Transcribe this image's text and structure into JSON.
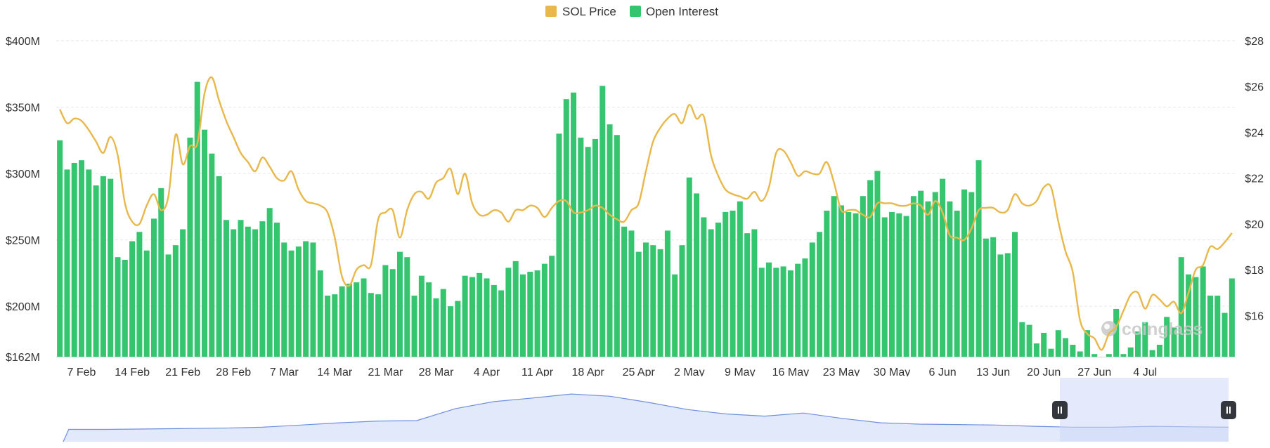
{
  "legend": [
    {
      "name": "SOL Price",
      "color": "#e8b84a"
    },
    {
      "name": "Open Interest",
      "color": "#35c56f"
    }
  ],
  "watermark": "coinglass",
  "chart_data": {
    "type": "bar",
    "x_tick_labels": [
      "7 Feb",
      "14 Feb",
      "21 Feb",
      "28 Feb",
      "7 Mar",
      "14 Mar",
      "21 Mar",
      "28 Mar",
      "4 Apr",
      "11 Apr",
      "18 Apr",
      "25 Apr",
      "2 May",
      "9 May",
      "16 May",
      "23 May",
      "30 May",
      "6 Jun",
      "13 Jun",
      "20 Jun",
      "27 Jun",
      "4 Jul"
    ],
    "y_left": {
      "ticks": [
        "$162M",
        "$200M",
        "$250M",
        "$300M",
        "$350M",
        "$400M"
      ],
      "tick_values": [
        162,
        200,
        250,
        300,
        350,
        400
      ],
      "range": [
        162,
        400
      ],
      "unit": "M USD"
    },
    "y_right": {
      "ticks": [
        "$16",
        "$18",
        "$20",
        "$22",
        "$24",
        "$26",
        "$28"
      ],
      "tick_values": [
        16,
        18,
        20,
        22,
        24,
        26,
        28
      ],
      "range": [
        14.2,
        28
      ]
    },
    "grid": true,
    "legend_position": "top-center",
    "series": [
      {
        "name": "Open Interest",
        "type": "bar",
        "axis": "left",
        "color": "#35c56f",
        "values": [
          325,
          303,
          308,
          310,
          303,
          291,
          298,
          296,
          237,
          235,
          249,
          256,
          242,
          266,
          289,
          239,
          246,
          258,
          327,
          369,
          333,
          315,
          298,
          265,
          258,
          265,
          260,
          258,
          264,
          274,
          263,
          248,
          242,
          245,
          249,
          248,
          227,
          208,
          209,
          215,
          217,
          218,
          221,
          210,
          209,
          231,
          228,
          241,
          237,
          208,
          223,
          218,
          206,
          213,
          200,
          204,
          223,
          222,
          225,
          221,
          216,
          212,
          229,
          234,
          224,
          226,
          227,
          232,
          238,
          330,
          356,
          361,
          327,
          320,
          326,
          366,
          337,
          329,
          260,
          257,
          241,
          248,
          246,
          243,
          257,
          224,
          246,
          297,
          285,
          267,
          258,
          263,
          271,
          272,
          279,
          255,
          258,
          229,
          233,
          229,
          230,
          227,
          232,
          236,
          248,
          256,
          272,
          283,
          276,
          271,
          270,
          283,
          295,
          302,
          267,
          271,
          270,
          268,
          283,
          287,
          279,
          286,
          296,
          279,
          272,
          288,
          286,
          310,
          251,
          252,
          239,
          240,
          256,
          188,
          186,
          172,
          180,
          168,
          182,
          176,
          171,
          166,
          182,
          164,
          160,
          164,
          198,
          164,
          169,
          181,
          188,
          167,
          171,
          192,
          184,
          237,
          224,
          222,
          230,
          208,
          208,
          195,
          221
        ],
        "label_index": {
          "7 Feb": 3,
          "14 Feb": 10,
          "21 Feb": 17,
          "28 Feb": 24,
          "7 Mar": 31,
          "14 Mar": 38,
          "21 Mar": 45,
          "28 Mar": 52,
          "4 Apr": 59,
          "11 Apr": 66,
          "18 Apr": 73,
          "25 Apr": 80,
          "2 May": 87,
          "9 May": 94,
          "16 May": 101,
          "23 May": 108,
          "30 May": 115,
          "6 Jun": 122,
          "13 Jun": 129,
          "20 Jun": 136,
          "27 Jun": 143,
          "4 Jul": 150
        }
      },
      {
        "name": "SOL Price",
        "type": "line",
        "axis": "right",
        "color": "#e8b84a",
        "values": [
          25.0,
          24.4,
          24.6,
          24.5,
          24.1,
          23.6,
          23.1,
          23.8,
          23.0,
          20.9,
          20.1,
          20.0,
          20.8,
          21.3,
          20.6,
          21.2,
          23.9,
          22.6,
          23.4,
          23.5,
          25.7,
          26.4,
          25.4,
          24.5,
          23.8,
          23.1,
          22.7,
          22.3,
          22.9,
          22.5,
          22.0,
          21.9,
          22.3,
          21.5,
          21.0,
          20.9,
          20.8,
          20.5,
          19.4,
          17.7,
          17.3,
          18.0,
          18.2,
          18.2,
          20.2,
          20.5,
          20.6,
          19.4,
          20.6,
          21.3,
          21.4,
          21.1,
          21.8,
          22.0,
          22.4,
          21.3,
          22.2,
          20.9,
          20.4,
          20.4,
          20.6,
          20.5,
          20.1,
          20.6,
          20.6,
          20.8,
          20.7,
          20.3,
          20.7,
          21.0,
          21.0,
          20.5,
          20.5,
          20.6,
          20.8,
          20.7,
          20.4,
          20.2,
          20.1,
          20.6,
          20.9,
          22.3,
          23.6,
          24.2,
          24.6,
          24.8,
          24.4,
          25.2,
          24.6,
          24.7,
          23.0,
          22.1,
          21.5,
          21.3,
          21.2,
          21.1,
          21.4,
          21.0,
          21.6,
          23.1,
          23.2,
          22.7,
          22.1,
          22.3,
          22.2,
          22.2,
          22.7,
          21.8,
          20.6,
          20.6,
          20.6,
          20.4,
          20.3,
          20.9,
          20.9,
          20.9,
          20.8,
          20.8,
          20.9,
          20.8,
          20.4,
          21.0,
          20.5,
          19.5,
          19.4,
          19.3,
          19.8,
          20.6,
          20.7,
          20.7,
          20.5,
          20.6,
          21.3,
          20.9,
          20.8,
          21.0,
          21.6,
          21.6,
          20.1,
          18.8,
          17.9,
          15.8,
          15.2,
          15.0,
          14.5,
          15.2,
          15.5,
          16.2,
          16.9,
          17.0,
          16.3,
          16.9,
          16.7,
          16.4,
          16.6,
          16.1,
          17.0,
          18.0,
          18.2,
          19.0,
          18.9,
          19.2,
          19.6
        ]
      }
    ]
  }
}
